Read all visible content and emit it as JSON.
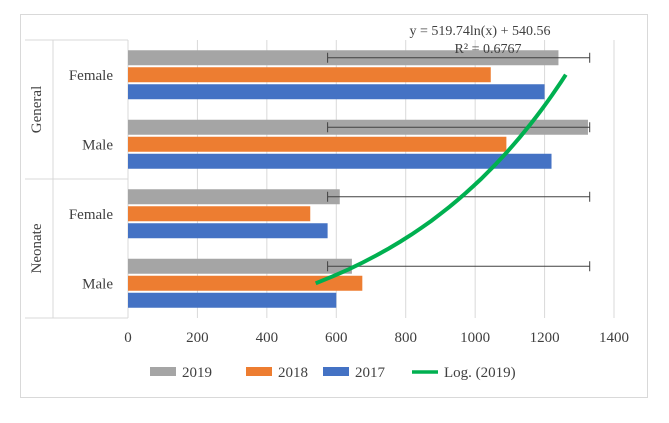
{
  "chart_data": {
    "type": "bar",
    "orientation": "horizontal",
    "groups": [
      "General",
      "Neonate"
    ],
    "categories": [
      "Female",
      "Male",
      "Female",
      "Male"
    ],
    "series": [
      {
        "name": "2019",
        "color": "#a5a5a5",
        "values": [
          1240,
          1325,
          610,
          645
        ]
      },
      {
        "name": "2018",
        "color": "#ed7d31",
        "values": [
          1045,
          1090,
          525,
          675
        ]
      },
      {
        "name": "2017",
        "color": "#4472c4",
        "values": [
          1200,
          1220,
          575,
          600
        ]
      }
    ],
    "error_bars": {
      "series": "2019",
      "ranges": [
        [
          575,
          1330
        ],
        [
          575,
          1330
        ],
        [
          575,
          1330
        ],
        [
          575,
          1330
        ]
      ]
    },
    "trendline": {
      "name": "Log. (2019)",
      "color": "#00b050",
      "equation": "y = 519.74ln(x) + 540.56",
      "r2_text": "R² = 0.6767"
    },
    "xlim": [
      0,
      1400
    ],
    "xticks": [
      0,
      200,
      400,
      600,
      800,
      1000,
      1200,
      1400
    ],
    "grid": true,
    "legend_position": "bottom"
  }
}
